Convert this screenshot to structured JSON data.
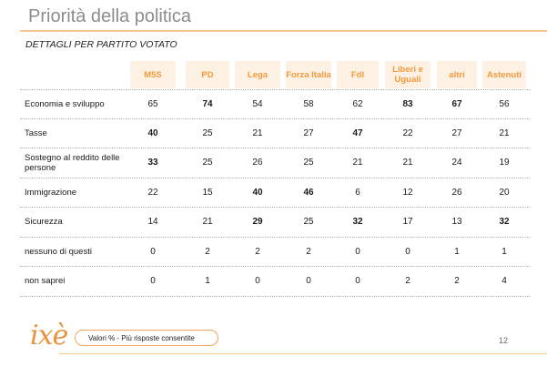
{
  "header": {
    "title": "Priorità della politica",
    "subtitle": "DETTAGLI PER PARTITO VOTATO"
  },
  "table": {
    "columns": [
      "M5S",
      "PD",
      "Lega",
      "Forza Italia",
      "FdI",
      "Liberi e Uguali",
      "altri",
      "Astenuti"
    ],
    "rows": [
      {
        "label": "Economia e sviluppo",
        "values": [
          "65",
          "74",
          "54",
          "58",
          "62",
          "83",
          "67",
          "56"
        ],
        "bold": [
          false,
          true,
          false,
          false,
          false,
          true,
          true,
          false
        ]
      },
      {
        "label": "Tasse",
        "values": [
          "40",
          "25",
          "21",
          "27",
          "47",
          "22",
          "27",
          "21"
        ],
        "bold": [
          true,
          false,
          false,
          false,
          true,
          false,
          false,
          false
        ]
      },
      {
        "label": "Sostegno al reddito delle persone",
        "values": [
          "33",
          "25",
          "26",
          "25",
          "21",
          "21",
          "24",
          "19"
        ],
        "bold": [
          true,
          false,
          false,
          false,
          false,
          false,
          false,
          false
        ]
      },
      {
        "label": "Immigrazione",
        "values": [
          "22",
          "15",
          "40",
          "46",
          "6",
          "12",
          "26",
          "20"
        ],
        "bold": [
          false,
          false,
          true,
          true,
          false,
          false,
          false,
          false
        ]
      },
      {
        "label": "Sicurezza",
        "values": [
          "14",
          "21",
          "29",
          "25",
          "32",
          "17",
          "13",
          "32"
        ],
        "bold": [
          false,
          false,
          true,
          false,
          true,
          false,
          false,
          true
        ]
      },
      {
        "label": "nessuno di questi",
        "values": [
          "0",
          "2",
          "2",
          "2",
          "0",
          "0",
          "1",
          "1"
        ],
        "bold": [
          false,
          false,
          false,
          false,
          false,
          false,
          false,
          false
        ]
      },
      {
        "label": "non saprei",
        "values": [
          "0",
          "1",
          "0",
          "0",
          "0",
          "2",
          "2",
          "4"
        ],
        "bold": [
          false,
          false,
          false,
          false,
          false,
          false,
          false,
          false
        ]
      }
    ]
  },
  "footer": {
    "logo_text": "ixè",
    "note": "Valori % - Più risposte consentite",
    "page_number": "12"
  },
  "colors": {
    "accent": "#f39a3a",
    "header_bg": "#fdf1e4",
    "rule": "#f5c693",
    "title": "#8c8c8c"
  }
}
